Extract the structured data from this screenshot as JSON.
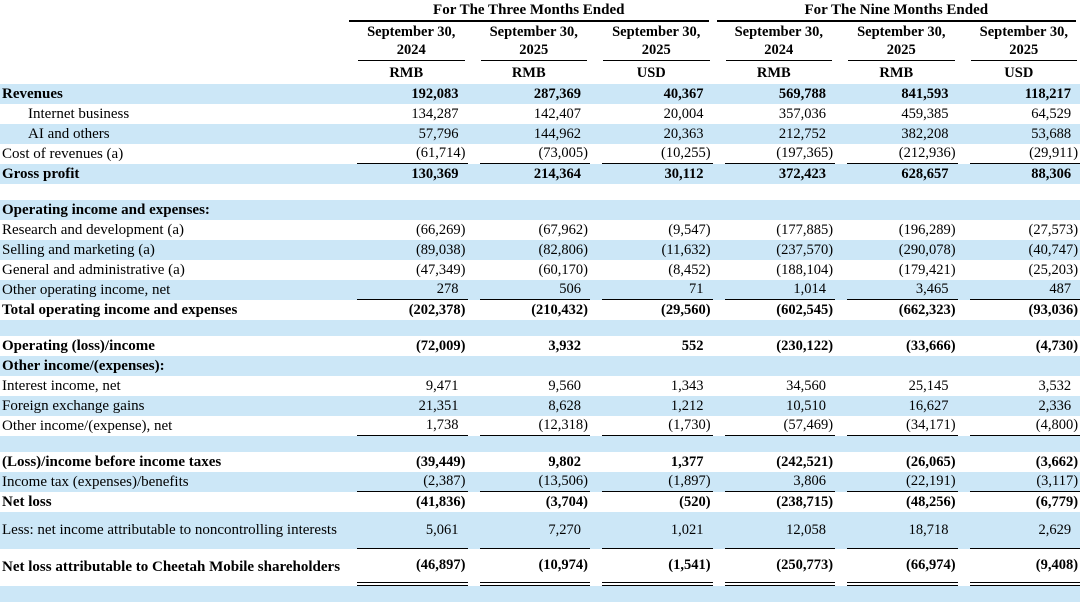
{
  "colors": {
    "band": "#cce7f7",
    "text": "#000000",
    "background": "#ffffff"
  },
  "table": {
    "groups": [
      {
        "label": "For The Three Months Ended"
      },
      {
        "label": "For The Nine Months Ended"
      }
    ],
    "columns": [
      {
        "date": "September 30,",
        "year": "2024",
        "currency": "RMB"
      },
      {
        "date": "September 30,",
        "year": "2025",
        "currency": "RMB"
      },
      {
        "date": "September 30,",
        "year": "2025",
        "currency": "USD"
      },
      {
        "date": "September 30,",
        "year": "2024",
        "currency": "RMB"
      },
      {
        "date": "September 30,",
        "year": "2025",
        "currency": "RMB"
      },
      {
        "date": "September 30,",
        "year": "2025",
        "currency": "USD"
      }
    ],
    "rows": [
      {
        "label": "Revenues",
        "bold": true,
        "values": [
          "192,083",
          "287,369",
          "40,367",
          "569,788",
          "841,593",
          "118,217"
        ]
      },
      {
        "label": "Internet business",
        "indent": true,
        "values": [
          "134,287",
          "142,407",
          "20,004",
          "357,036",
          "459,385",
          "64,529"
        ]
      },
      {
        "label": "AI and others",
        "indent": true,
        "values": [
          "57,796",
          "144,962",
          "20,363",
          "212,752",
          "382,208",
          "53,688"
        ]
      },
      {
        "label": "Cost of revenues (a)",
        "rule": "single",
        "values": [
          "(61,714)",
          "(73,005)",
          "(10,255)",
          "(197,365)",
          "(212,936)",
          "(29,911)"
        ]
      },
      {
        "label": "Gross profit",
        "bold": true,
        "values": [
          "130,369",
          "214,364",
          "30,112",
          "372,423",
          "628,657",
          "88,306"
        ]
      },
      {
        "type": "spacer"
      },
      {
        "label": "Operating income and expenses:",
        "bold": true
      },
      {
        "label": "Research and development (a)",
        "values": [
          "(66,269)",
          "(67,962)",
          "(9,547)",
          "(177,885)",
          "(196,289)",
          "(27,573)"
        ]
      },
      {
        "label": "Selling and marketing (a)",
        "values": [
          "(89,038)",
          "(82,806)",
          "(11,632)",
          "(237,570)",
          "(290,078)",
          "(40,747)"
        ]
      },
      {
        "label": "General and administrative (a)",
        "values": [
          "(47,349)",
          "(60,170)",
          "(8,452)",
          "(188,104)",
          "(179,421)",
          "(25,203)"
        ]
      },
      {
        "label": "Other operating income, net",
        "rule": "single",
        "values": [
          "278",
          "506",
          "71",
          "1,014",
          "3,465",
          "487"
        ]
      },
      {
        "label": "Total operating income and expenses",
        "bold": true,
        "values": [
          "(202,378)",
          "(210,432)",
          "(29,560)",
          "(602,545)",
          "(662,323)",
          "(93,036)"
        ]
      },
      {
        "type": "spacer"
      },
      {
        "label": "Operating (loss)/income",
        "bold": true,
        "values": [
          "(72,009)",
          "3,932",
          "552",
          "(230,122)",
          "(33,666)",
          "(4,730)"
        ]
      },
      {
        "label": "Other income/(expenses):",
        "bold": true
      },
      {
        "label": "Interest income, net",
        "values": [
          "9,471",
          "9,560",
          "1,343",
          "34,560",
          "25,145",
          "3,532"
        ]
      },
      {
        "label": "Foreign exchange gains",
        "values": [
          "21,351",
          "8,628",
          "1,212",
          "10,510",
          "16,627",
          "2,336"
        ]
      },
      {
        "label": "Other income/(expense), net",
        "rule": "single",
        "values": [
          "1,738",
          "(12,318)",
          "(1,730)",
          "(57,469)",
          "(34,171)",
          "(4,800)"
        ]
      },
      {
        "type": "spacer"
      },
      {
        "label": "(Loss)/income before income taxes",
        "bold": true,
        "values": [
          "(39,449)",
          "9,802",
          "1,377",
          "(242,521)",
          "(26,065)",
          "(3,662)"
        ]
      },
      {
        "label": "Income tax (expenses)/benefits",
        "rule": "single",
        "values": [
          "(2,387)",
          "(13,506)",
          "(1,897)",
          "3,806",
          "(22,191)",
          "(3,117)"
        ]
      },
      {
        "label": "Net loss",
        "bold": true,
        "values": [
          "(41,836)",
          "(3,704)",
          "(520)",
          "(238,715)",
          "(48,256)",
          "(6,779)"
        ]
      },
      {
        "label": "Less: net income attributable to noncontrolling interests",
        "rule": "single",
        "tall": true,
        "values": [
          "5,061",
          "7,270",
          "1,021",
          "12,058",
          "18,718",
          "2,629"
        ]
      },
      {
        "label": "Net loss attributable to Cheetah Mobile shareholders",
        "bold": true,
        "rule": "double",
        "tall": true,
        "values": [
          "(46,897)",
          "(10,974)",
          "(1,541)",
          "(250,773)",
          "(66,974)",
          "(9,408)"
        ]
      },
      {
        "type": "spacer"
      }
    ]
  }
}
